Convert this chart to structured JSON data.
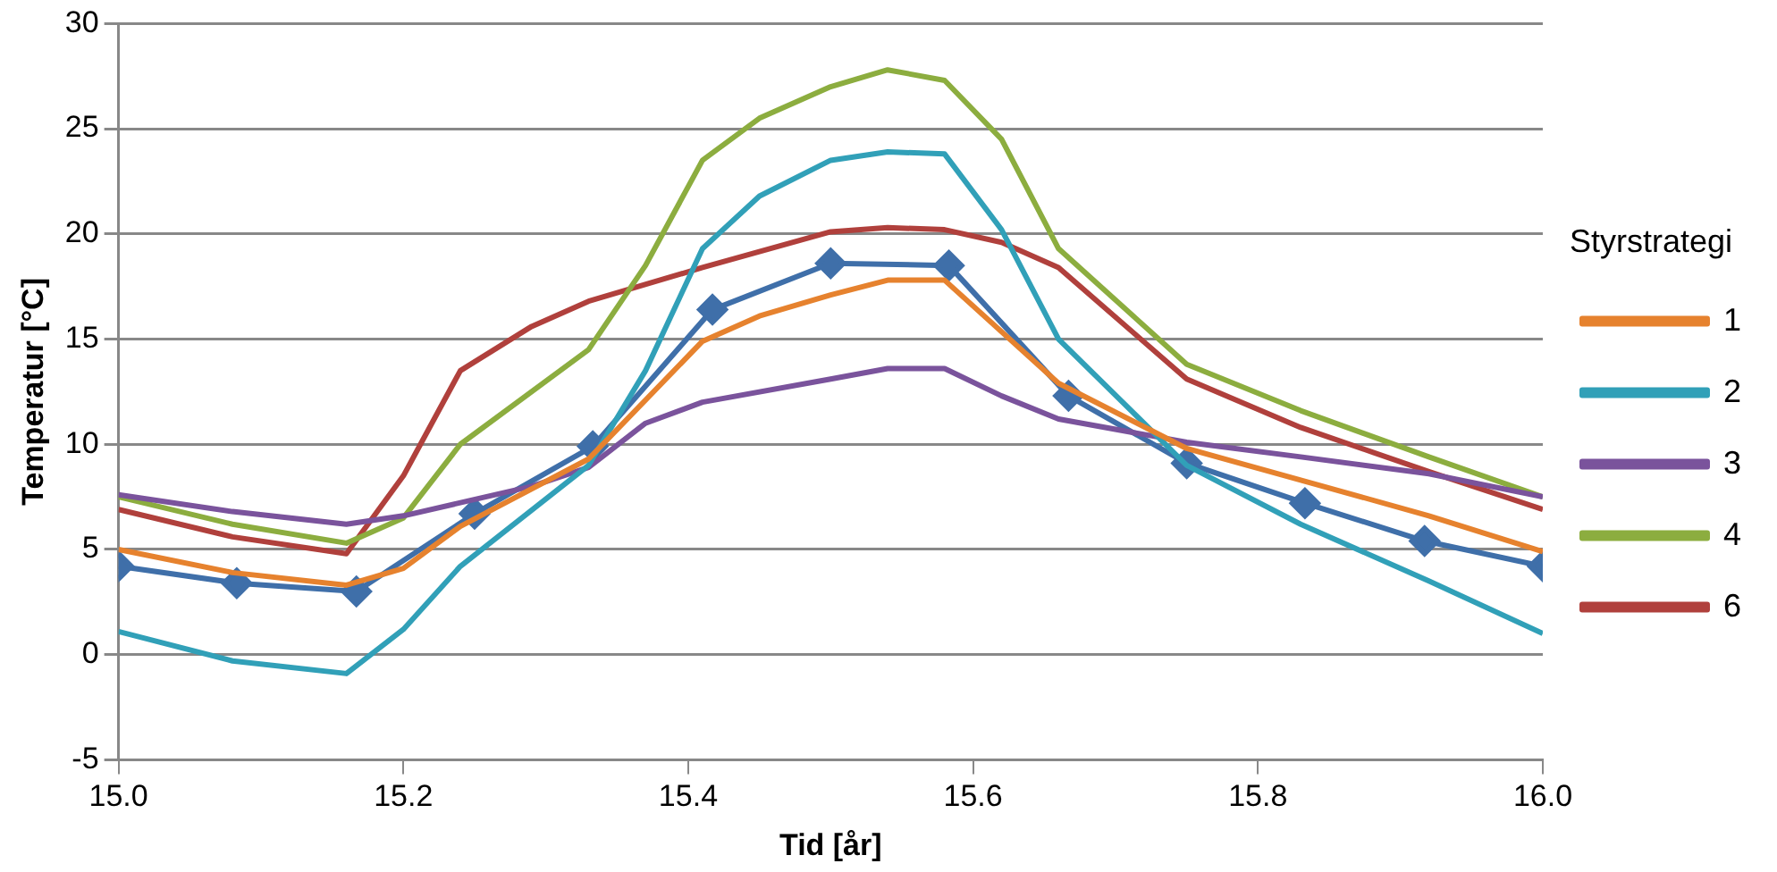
{
  "chart_data": {
    "type": "line",
    "xlabel": "Tid [år]",
    "ylabel": "Temperatur [°C]",
    "legend_title": "Styrstrategi",
    "legend": "right",
    "grid": "y",
    "xlim": [
      15.0,
      16.0
    ],
    "ylim": [
      -5,
      30
    ],
    "xticks": [
      {
        "value": 15.0,
        "label": "15.0"
      },
      {
        "value": 15.2,
        "label": "15.2"
      },
      {
        "value": 15.4,
        "label": "15.4"
      },
      {
        "value": 15.6,
        "label": "15.6"
      },
      {
        "value": 15.8,
        "label": "15.8"
      },
      {
        "value": 16.0,
        "label": "16.0"
      }
    ],
    "yticks": [
      -5,
      0,
      5,
      10,
      15,
      20,
      25,
      30
    ],
    "series": [
      {
        "name": "1",
        "color": "#e6822e",
        "marker": "none",
        "x": [
          15.0,
          15.08,
          15.16,
          15.2,
          15.24,
          15.33,
          15.41,
          15.45,
          15.5,
          15.54,
          15.58,
          15.66,
          15.75,
          15.83,
          15.92,
          16.0
        ],
        "values": [
          5.0,
          3.9,
          3.3,
          4.1,
          6.1,
          9.3,
          14.9,
          16.1,
          17.1,
          17.8,
          17.8,
          12.9,
          9.8,
          8.3,
          6.6,
          4.9
        ]
      },
      {
        "name": "2",
        "color": "#31a0b8",
        "marker": "none",
        "x": [
          15.0,
          15.08,
          15.16,
          15.2,
          15.24,
          15.33,
          15.37,
          15.41,
          15.45,
          15.5,
          15.54,
          15.58,
          15.62,
          15.66,
          15.75,
          15.83,
          15.92,
          16.0
        ],
        "values": [
          1.1,
          -0.3,
          -0.9,
          1.2,
          4.2,
          9.0,
          13.5,
          19.3,
          21.8,
          23.5,
          23.9,
          23.8,
          20.2,
          15.0,
          9.0,
          6.2,
          3.5,
          1.0
        ]
      },
      {
        "name": "3",
        "color": "#7a539c",
        "marker": "none",
        "x": [
          15.0,
          15.08,
          15.16,
          15.2,
          15.29,
          15.33,
          15.37,
          15.41,
          15.5,
          15.54,
          15.58,
          15.62,
          15.66,
          15.75,
          15.83,
          15.92,
          16.0
        ],
        "values": [
          7.6,
          6.8,
          6.2,
          6.6,
          8.0,
          8.9,
          11.0,
          12.0,
          13.1,
          13.6,
          13.6,
          12.3,
          11.2,
          10.1,
          9.4,
          8.6,
          7.5
        ]
      },
      {
        "name": "4",
        "color": "#8cad3f",
        "marker": "none",
        "x": [
          15.0,
          15.08,
          15.16,
          15.2,
          15.24,
          15.33,
          15.37,
          15.41,
          15.45,
          15.5,
          15.54,
          15.58,
          15.62,
          15.66,
          15.75,
          15.83,
          15.92,
          16.0
        ],
        "values": [
          7.5,
          6.2,
          5.3,
          6.5,
          10.0,
          14.5,
          18.5,
          23.5,
          25.5,
          27.0,
          27.8,
          27.3,
          24.5,
          19.3,
          13.8,
          11.6,
          9.4,
          7.5
        ]
      },
      {
        "name": "6",
        "color": "#b0403c",
        "marker": "none",
        "x": [
          15.0,
          15.08,
          15.16,
          15.2,
          15.24,
          15.29,
          15.33,
          15.41,
          15.5,
          15.54,
          15.58,
          15.62,
          15.66,
          15.75,
          15.83,
          15.92,
          16.0
        ],
        "values": [
          6.9,
          5.6,
          4.8,
          8.5,
          13.5,
          15.6,
          16.8,
          18.4,
          20.1,
          20.3,
          20.2,
          19.6,
          18.4,
          13.1,
          10.8,
          8.7,
          6.9
        ]
      },
      {
        "color": "#3f6fa9",
        "marker": "diamond",
        "x": [
          15.0,
          15.083,
          15.167,
          15.25,
          15.333,
          15.417,
          15.5,
          15.583,
          15.667,
          15.75,
          15.833,
          15.917,
          16.0
        ],
        "values": [
          4.2,
          3.4,
          3.0,
          6.7,
          9.9,
          16.4,
          18.6,
          18.5,
          12.3,
          9.1,
          7.2,
          5.4,
          4.2
        ]
      }
    ]
  }
}
